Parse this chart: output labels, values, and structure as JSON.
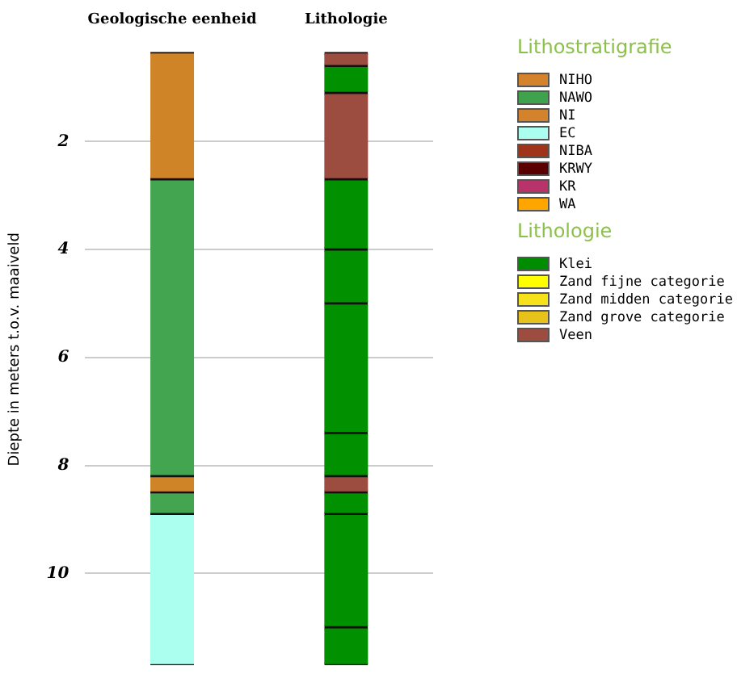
{
  "chart_data": {
    "type": "bar",
    "ylabel": "Diepte in meters t.o.v. maaiveld",
    "categories": [
      "Geologische eenheid",
      "Lithologie"
    ],
    "ylim": [
      11.7,
      0
    ],
    "yticks": [
      2,
      4,
      6,
      8,
      10
    ],
    "grid": "y",
    "legend": "right",
    "annotations": [
      "Lithostratigrafie",
      "Lithologie"
    ],
    "series": [
      {
        "color": "#d08428",
        "values": [
          2.35,
          null
        ],
        "base": [
          0.35,
          null
        ]
      },
      {
        "color": "#44a550",
        "values": [
          5.5,
          null
        ],
        "base": [
          2.7,
          null
        ]
      },
      {
        "color": "#d08428",
        "values": [
          0.3,
          null
        ],
        "base": [
          8.2,
          null
        ]
      },
      {
        "color": "#44a550",
        "values": [
          0.4,
          null
        ],
        "base": [
          8.5,
          null
        ]
      },
      {
        "color": "#aaffee",
        "values": [
          2.8,
          null
        ],
        "base": [
          8.9,
          null
        ]
      },
      {
        "color": "#9c4d40",
        "values": [
          null,
          0.25
        ],
        "base": [
          null,
          0.35
        ]
      },
      {
        "color": "#009000",
        "values": [
          null,
          0.5
        ],
        "base": [
          null,
          0.6
        ]
      },
      {
        "color": "#9c4d40",
        "values": [
          null,
          1.6
        ],
        "base": [
          null,
          1.1
        ]
      },
      {
        "color": "#009000",
        "values": [
          null,
          1.3
        ],
        "base": [
          null,
          2.7
        ]
      },
      {
        "color": "#009000",
        "values": [
          null,
          1.0
        ],
        "base": [
          null,
          4.0
        ]
      },
      {
        "color": "#009000",
        "values": [
          null,
          2.4
        ],
        "base": [
          null,
          5.0
        ]
      },
      {
        "color": "#009000",
        "values": [
          null,
          0.8
        ],
        "base": [
          null,
          7.4
        ]
      },
      {
        "color": "#9c4d40",
        "values": [
          null,
          0.3
        ],
        "base": [
          null,
          8.2
        ]
      },
      {
        "color": "#009000",
        "values": [
          null,
          0.4
        ],
        "base": [
          null,
          8.5
        ]
      },
      {
        "color": "#009000",
        "values": [
          null,
          2.1
        ],
        "base": [
          null,
          8.9
        ]
      },
      {
        "color": "#009000",
        "values": [
          null,
          0.7
        ],
        "base": [
          null,
          11.0
        ]
      },
      {
        "name": "NIHO",
        "color": "#d4832c",
        "x": [
          "Geologische eenheid"
        ],
        "values": [
          null
        ]
      },
      {
        "name": "NAWO",
        "color": "#3fa34d",
        "x": [
          "Geologische eenheid"
        ],
        "values": [
          null
        ]
      },
      {
        "name": "NI",
        "color": "#d4832c",
        "x": [
          "Geologische eenheid"
        ],
        "values": [
          null
        ]
      },
      {
        "name": "EC",
        "color": "#aaffee",
        "x": [
          "Geologische eenheid"
        ],
        "values": [
          null
        ]
      },
      {
        "name": "NIBA",
        "color": "#a0341a",
        "x": [
          "Geologische eenheid"
        ],
        "values": [
          null
        ]
      },
      {
        "name": "KRWY",
        "color": "#5a0000",
        "x": [
          "Geologische eenheid"
        ],
        "values": [
          null
        ]
      },
      {
        "name": "KR",
        "color": "#b8336a",
        "x": [
          "Geologische eenheid"
        ],
        "values": [
          null
        ]
      },
      {
        "name": "WA",
        "color": "#ffa500",
        "x": [
          "Geologische eenheid"
        ],
        "values": [
          null
        ]
      },
      {
        "name": "Klei",
        "color": "#008c00",
        "x": [
          "Lithologie"
        ],
        "values": [
          null
        ]
      },
      {
        "name": "Zand fijne categorie",
        "color": "#ffff00",
        "x": [
          "Lithologie"
        ],
        "values": [
          null
        ]
      },
      {
        "name": "Zand midden categorie",
        "color": "#f5e21a",
        "x": [
          "Lithologie"
        ],
        "values": [
          null
        ]
      },
      {
        "name": "Zand grove categorie",
        "color": "#e6c21a",
        "x": [
          "Lithologie"
        ],
        "values": [
          null
        ]
      },
      {
        "name": "Veen",
        "color": "#9c4d40",
        "x": [
          "Lithologie"
        ],
        "values": [
          null
        ]
      }
    ]
  }
}
